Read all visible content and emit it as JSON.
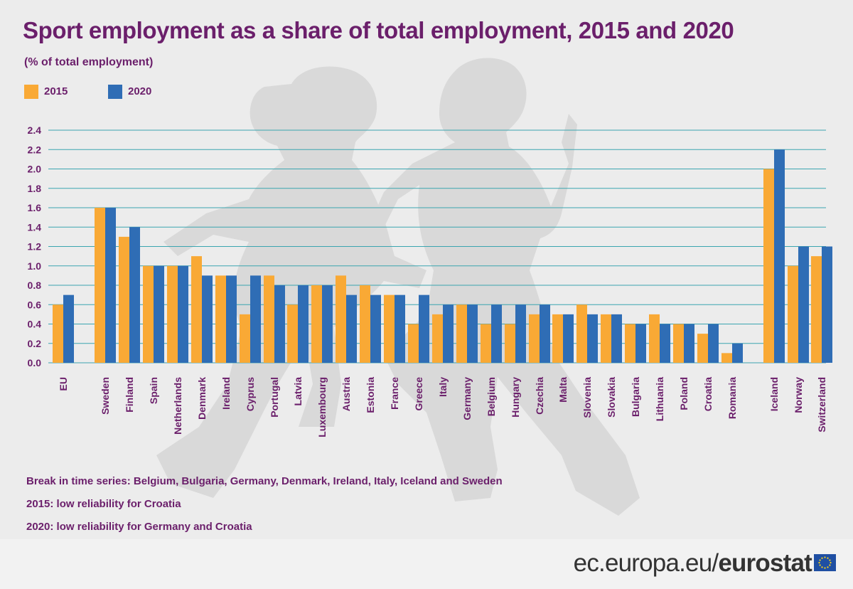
{
  "header": {
    "title": "Sport employment as a share of total employment, 2015 and 2020",
    "subtitle": "(% of total employment)"
  },
  "legend": [
    {
      "label": "2015",
      "color": "#f9a935"
    },
    {
      "label": "2020",
      "color": "#2f6db5"
    }
  ],
  "chart_data": {
    "type": "bar",
    "title": "Sport employment as a share of total employment, 2015 and 2020",
    "ylabel": "(% of total employment)",
    "xlabel": "",
    "ylim": [
      0,
      2.4
    ],
    "yticks": [
      "0.0",
      "0.2",
      "0.4",
      "0.6",
      "0.8",
      "1.0",
      "1.2",
      "1.4",
      "1.6",
      "1.8",
      "2.0",
      "2.2",
      "2.4"
    ],
    "grid": true,
    "legend_position": "top-left",
    "categories": [
      "EU",
      "Sweden",
      "Finland",
      "Spain",
      "Netherlands",
      "Denmark",
      "Ireland",
      "Cyprus",
      "Portugal",
      "Latvia",
      "Luxembourg",
      "Austria",
      "Estonia",
      "France",
      "Greece",
      "Italy",
      "Germany",
      "Belgium",
      "Hungary",
      "Czechia",
      "Malta",
      "Slovenia",
      "Slovakia",
      "Bulgaria",
      "Lithuania",
      "Poland",
      "Croatia",
      "Romania",
      "Iceland",
      "Norway",
      "Switzerland"
    ],
    "series": [
      {
        "name": "2015",
        "color": "#f9a935",
        "values": [
          0.6,
          1.6,
          1.3,
          1.0,
          1.0,
          1.1,
          0.9,
          0.5,
          0.9,
          0.6,
          0.8,
          0.9,
          0.8,
          0.7,
          0.4,
          0.5,
          0.6,
          0.4,
          0.4,
          0.5,
          0.5,
          0.6,
          0.5,
          0.4,
          0.5,
          0.4,
          0.3,
          0.1,
          2.0,
          1.0,
          1.1
        ]
      },
      {
        "name": "2020",
        "color": "#2f6db5",
        "values": [
          0.7,
          1.6,
          1.4,
          1.0,
          1.0,
          0.9,
          0.9,
          0.9,
          0.8,
          0.8,
          0.8,
          0.7,
          0.7,
          0.7,
          0.7,
          0.6,
          0.6,
          0.6,
          0.6,
          0.6,
          0.5,
          0.5,
          0.5,
          0.4,
          0.4,
          0.4,
          0.4,
          0.2,
          2.2,
          1.2,
          1.2
        ]
      }
    ],
    "gridline_color": "#3ba5b0",
    "label_color": "#6b1f6b"
  },
  "notes": [
    "Break in time series: Belgium, Bulgaria, Germany, Denmark, Ireland, Italy, Iceland and Sweden",
    "2015: low reliability for Croatia",
    "2020: low reliability for Germany and Croatia"
  ],
  "footer": {
    "site": "ec.europa.eu/",
    "brand": "eurostat"
  },
  "icons": {
    "flag": "eu-flag-icon",
    "background": "runners-silhouette-icon"
  }
}
